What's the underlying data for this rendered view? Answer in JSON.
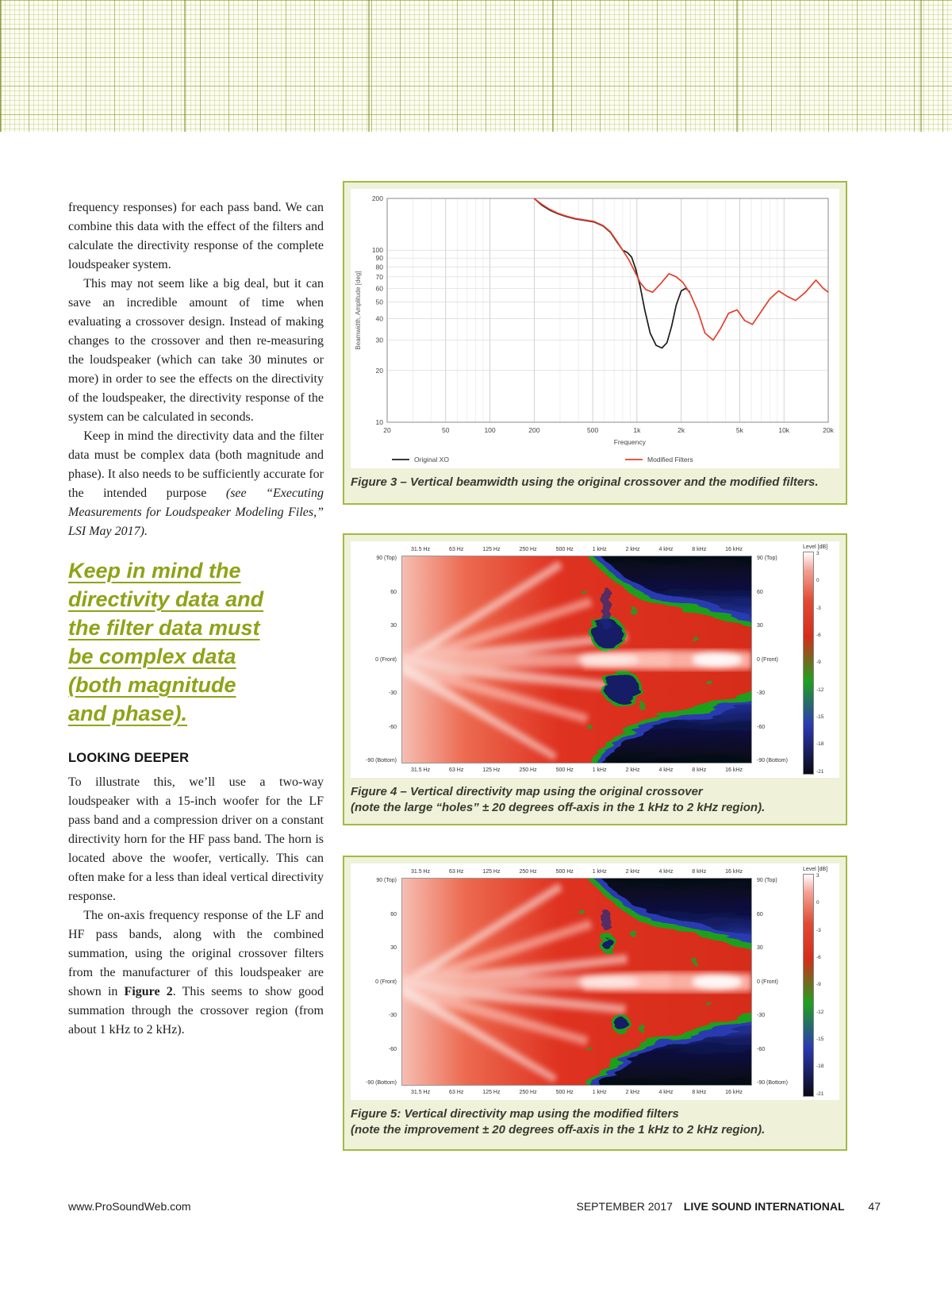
{
  "article": {
    "p1": "frequency responses) for each pass band. We can combine this data with the effect of the filters and calculate the directivity response of the complete loudspeaker system.",
    "p2": "This may not seem like a big deal, but it can save an incredible amount of time when evaluating a crossover design. Instead of making changes to the crossover and then re-measuring the loudspeaker (which can take 30 minutes or more) in order to see the effects on the directivity of the loudspeaker, the directivity response of the system can be calculated in seconds.",
    "p3a": "Keep in mind the directivity data and the filter data must be complex data (both magnitude and phase). It also needs to be sufficiently accurate for the intended purpose ",
    "p3b": "(see “Executing Measurements for Loudspeaker Modeling Files,” LSI May 2017).",
    "pullquote": [
      "Keep in mind the",
      "directivity data and",
      "the filter data must",
      "be complex data",
      "(both magnitude",
      "and phase)."
    ],
    "heading": "LOOKING DEEPER",
    "p4": "To illustrate this, we’ll use a two-way loudspeaker with a 15-inch woofer for the LF pass band and a compression driver on a constant directivity horn for the HF pass band. The horn is located above the woofer, vertically. This can often make for a less than ideal vertical directivity response.",
    "p5a": "The on-axis frequency response of the LF and HF pass bands, along with the combined summation, using the original crossover filters from the manufacturer of this loudspeaker are shown in ",
    "p5b": "Figure 2",
    "p5c": ". This seems to show good summation through the crossover region (from about 1 kHz to 2 kHz)."
  },
  "figures": {
    "fig3": {
      "caption": "Figure 3 – Vertical beamwidth using the original crossover and the modified filters."
    },
    "fig4": {
      "caption_1": "Figure 4 – Vertical directivity map using the original crossover",
      "caption_2": "(note the large “holes” ± 20 degrees off-axis in the 1 kHz to 2 kHz region)."
    },
    "fig5": {
      "caption_1": "Figure 5: Vertical directivity map using the modified filters",
      "caption_2": "(note the improvement ± 20 degrees off-axis in the 1 kHz to 2 kHz region)."
    }
  },
  "chart_data": [
    {
      "id": "fig3",
      "type": "line",
      "title": "",
      "xlabel": "Frequency",
      "ylabel": "Beamwidth, Amplitude  [deg]",
      "xscale": "log",
      "yscale": "log",
      "xlim": [
        20,
        20000
      ],
      "ylim": [
        10,
        200
      ],
      "x_tick_values": [
        20,
        50,
        100,
        200,
        500,
        1000,
        2000,
        5000,
        10000,
        20000
      ],
      "x_tick_labels": [
        "20",
        "50",
        "100",
        "200",
        "500",
        "1k",
        "2k",
        "5k",
        "10k",
        "20k"
      ],
      "y_tick_values": [
        200,
        100,
        90,
        80,
        70,
        60,
        50,
        40,
        30,
        20,
        10
      ],
      "y_tick_labels": [
        "200",
        "100",
        "90",
        "80",
        "70",
        "60",
        "50",
        "40",
        "30",
        "20",
        "10"
      ],
      "legend": [
        {
          "name": "Original XO",
          "color": "#1b1b1b"
        },
        {
          "name": "Modified Filters",
          "color": "#e2402c"
        }
      ],
      "series": [
        {
          "name": "Original XO",
          "color": "#1b1b1b",
          "x": [
            200,
            225,
            255,
            290,
            330,
            380,
            440,
            510,
            590,
            660,
            730,
            800,
            860,
            920,
            980,
            1050,
            1130,
            1230,
            1350,
            1480,
            1600,
            1720,
            1850,
            2000,
            2150,
            2300
          ],
          "y": [
            200,
            183,
            171,
            163,
            157,
            152,
            149,
            146,
            138,
            127,
            112,
            100,
            97,
            91,
            78,
            62,
            45,
            33,
            28,
            27,
            29,
            36,
            48,
            58,
            60,
            57
          ]
        },
        {
          "name": "Modified Filters",
          "color": "#e2402c",
          "x": [
            200,
            225,
            255,
            290,
            330,
            380,
            440,
            510,
            590,
            660,
            730,
            800,
            880,
            960,
            1050,
            1150,
            1280,
            1450,
            1650,
            1850,
            2050,
            2300,
            2600,
            2900,
            3300,
            3700,
            4200,
            4800,
            5400,
            6100,
            7000,
            8000,
            9200,
            10500,
            12000,
            14000,
            16500,
            18500,
            20000
          ],
          "y": [
            200,
            185,
            173,
            164,
            158,
            153,
            150,
            147,
            139,
            128,
            113,
            100,
            88,
            76,
            65,
            59,
            57,
            64,
            73,
            70,
            65,
            56,
            44,
            33,
            30,
            35,
            43,
            45,
            39,
            37,
            44,
            52,
            58,
            54,
            51,
            57,
            67,
            60,
            57
          ]
        }
      ]
    },
    {
      "id": "fig4",
      "type": "heatmap",
      "x_tick_labels": [
        "31.5 Hz",
        "63 Hz",
        "125 Hz",
        "250 Hz",
        "500 Hz",
        "1 kHz",
        "2 kHz",
        "4 kHz",
        "8 kHz",
        "16 kHz"
      ],
      "y_tick_labels": [
        "90 (Top)",
        "60",
        "30",
        "0 (Front)",
        "-30",
        "-60",
        "-90 (Bottom)"
      ],
      "colorbar_title": "Level [dB]",
      "colorbar_ticks": [
        "3",
        "0",
        "-3",
        "-6",
        "-9",
        "-12",
        "-15",
        "-18",
        "-21"
      ]
    },
    {
      "id": "fig5",
      "type": "heatmap",
      "x_tick_labels": [
        "31.5 Hz",
        "63 Hz",
        "125 Hz",
        "250 Hz",
        "500 Hz",
        "1 kHz",
        "2 kHz",
        "4 kHz",
        "8 kHz",
        "16 kHz"
      ],
      "y_tick_labels": [
        "90 (Top)",
        "60",
        "30",
        "0 (Front)",
        "-30",
        "-60",
        "-90 (Bottom)"
      ],
      "colorbar_title": "Level [dB]",
      "colorbar_ticks": [
        "3",
        "0",
        "-3",
        "-6",
        "-9",
        "-12",
        "-15",
        "-18",
        "-21"
      ]
    }
  ],
  "footer": {
    "website": "www.ProSoundWeb.com",
    "issue": "SEPTEMBER 2017",
    "brand": "LIVE SOUND INTERNATIONAL",
    "page": "47"
  }
}
